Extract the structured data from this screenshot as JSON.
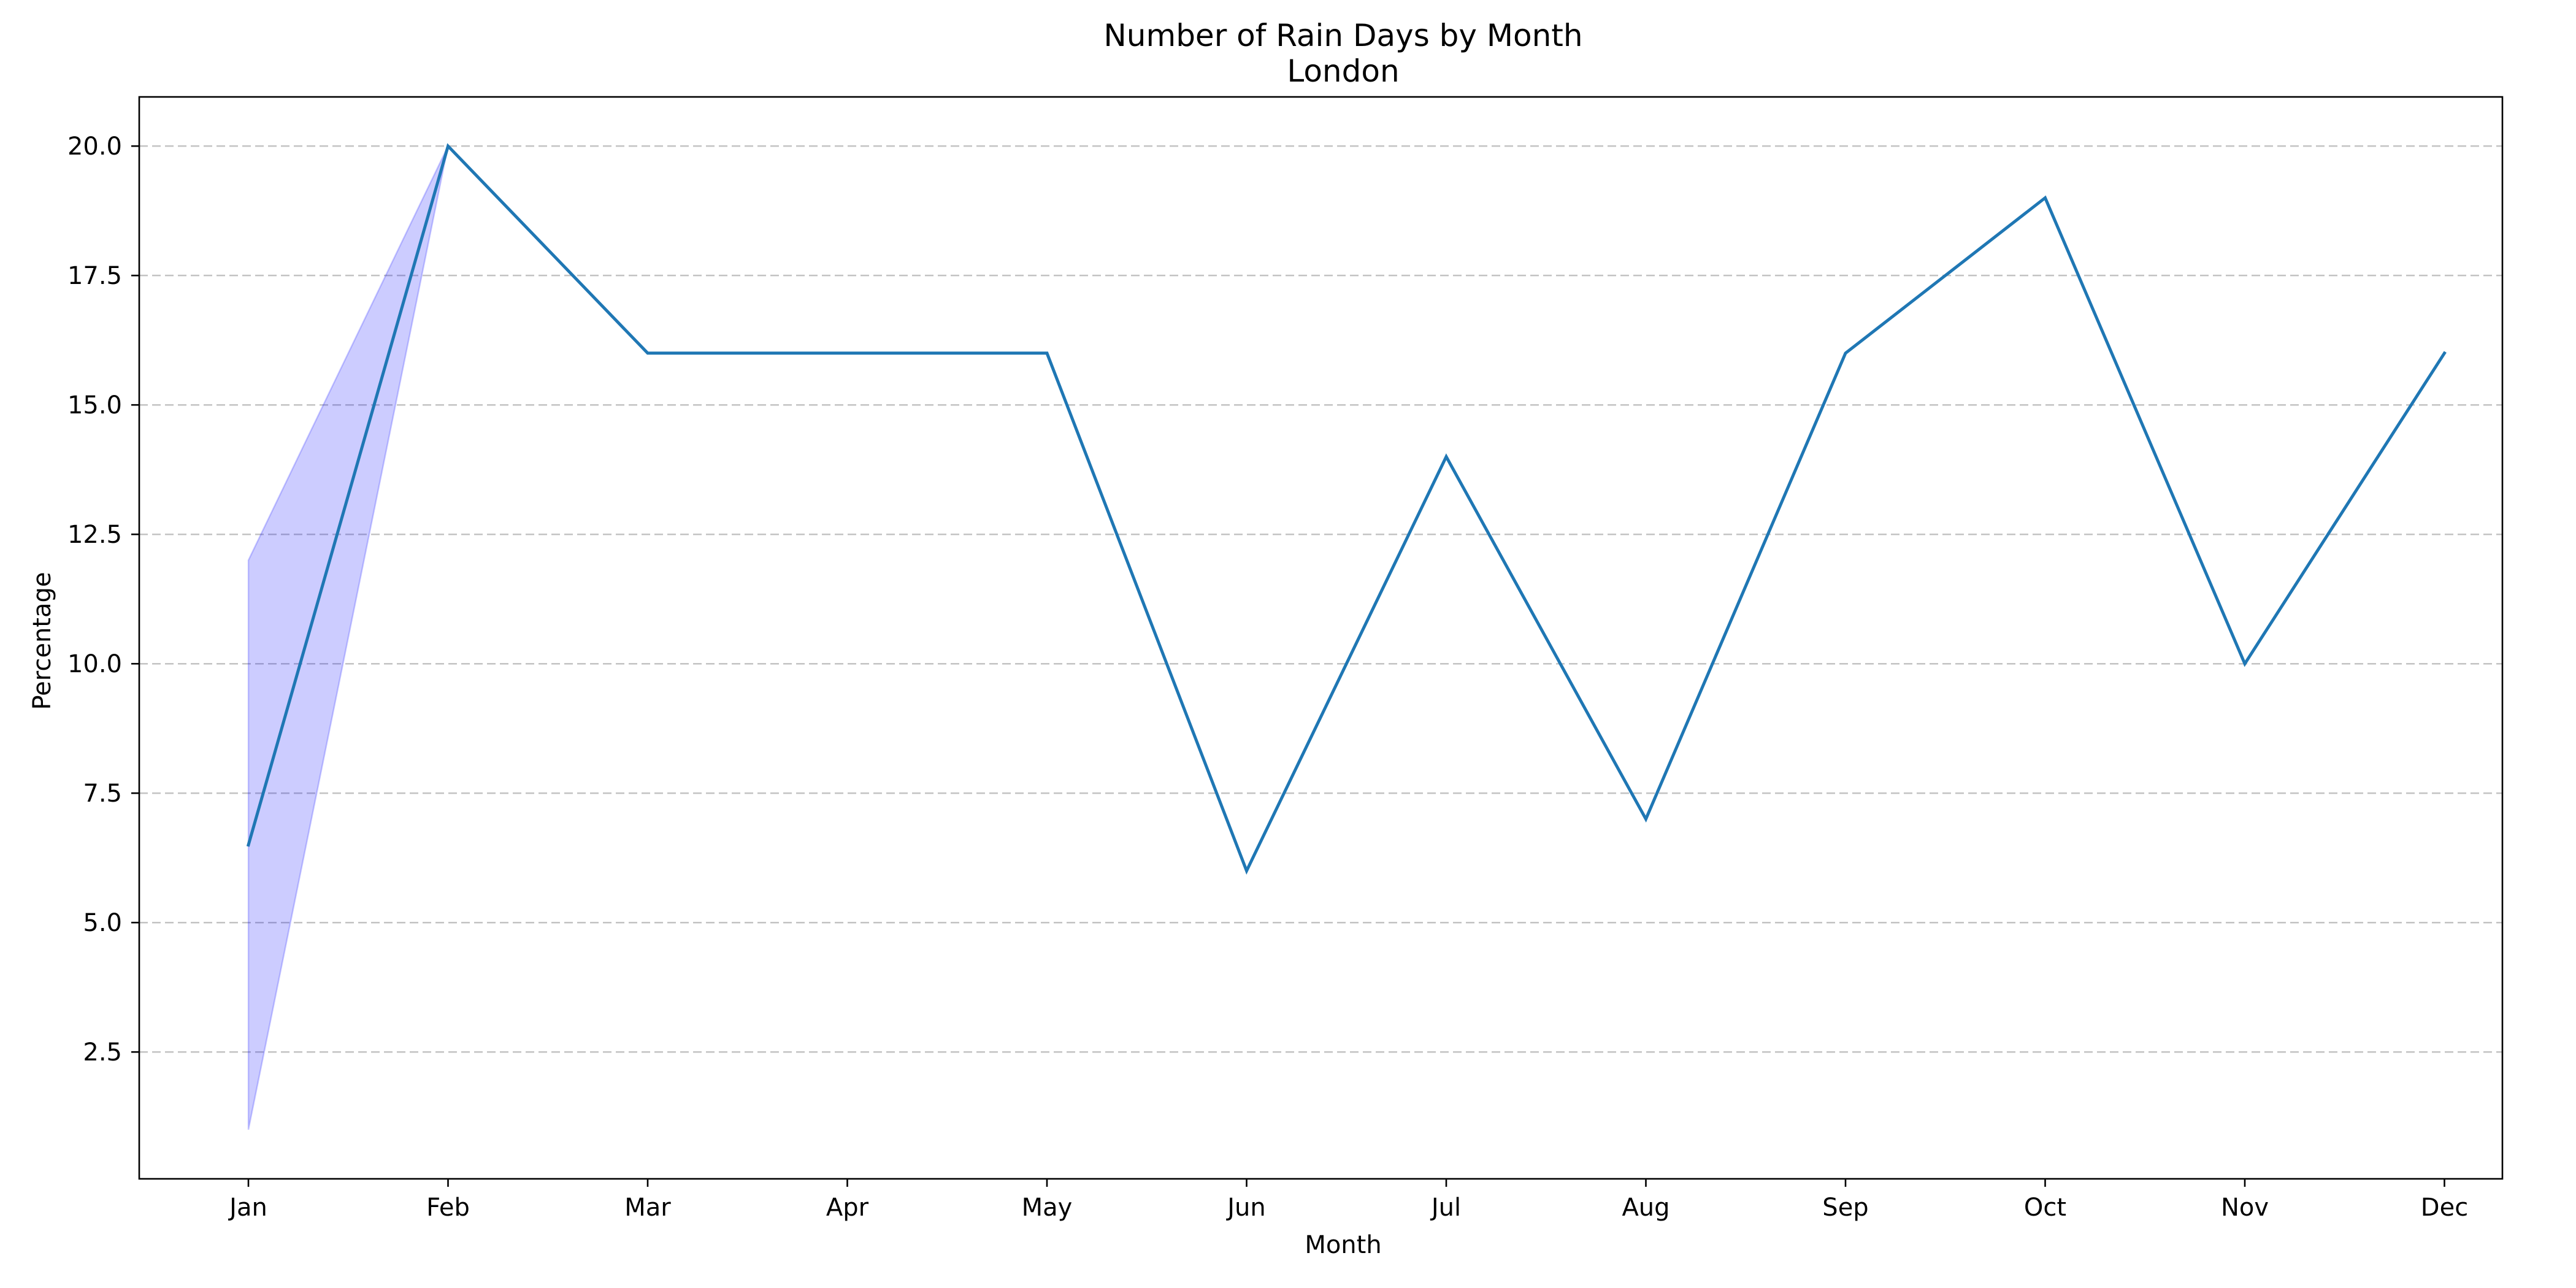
{
  "chart_data": {
    "type": "line",
    "title": "Number of Rain Days by Month",
    "subtitle": "London",
    "xlabel": "Month",
    "ylabel": "Percentage",
    "categories": [
      "Jan",
      "Feb",
      "Mar",
      "Apr",
      "May",
      "Jun",
      "Jul",
      "Aug",
      "Sep",
      "Oct",
      "Nov",
      "Dec"
    ],
    "series": [
      {
        "values": [
          6.5,
          20,
          16,
          16,
          16,
          6,
          14,
          7,
          16,
          19,
          10,
          16
        ],
        "color": "#1f77b4"
      }
    ],
    "band": {
      "color": "#0000ff",
      "opacity": 0.2,
      "lower": [
        1,
        20
      ],
      "upper": [
        12,
        20
      ],
      "categories": [
        "Jan",
        "Feb"
      ]
    },
    "ylim": [
      0.05,
      20.95
    ],
    "yticks": [
      2.5,
      5.0,
      7.5,
      10.0,
      12.5,
      15.0,
      17.5,
      20.0
    ],
    "ytick_labels": [
      "2.5",
      "5.0",
      "7.5",
      "10.0",
      "12.5",
      "15.0",
      "17.5",
      "20.0"
    ],
    "grid": "y-dashed",
    "legend": "none"
  }
}
